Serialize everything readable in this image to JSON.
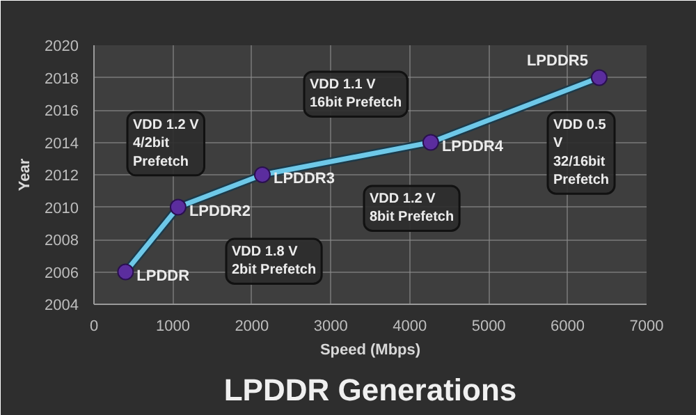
{
  "chart_data": {
    "type": "line",
    "title": "LPDDR Generations",
    "xlabel": "Speed (Mbps)",
    "ylabel": "Year",
    "x": [
      400,
      1066,
      2133,
      4266,
      6400
    ],
    "series": [
      {
        "color": "#6ec8e8",
        "values": [
          2006,
          2010,
          2012,
          2014,
          2018
        ]
      }
    ],
    "marker": "circle",
    "grid": true,
    "xlim": [
      0,
      7000
    ],
    "xticks": [
      0,
      1000,
      2000,
      3000,
      4000,
      5000,
      6000,
      7000
    ],
    "ylim": [
      2004,
      2020
    ],
    "yticks": [
      2004,
      2006,
      2008,
      2010,
      2012,
      2014,
      2016,
      2018,
      2020
    ],
    "annotations": [
      {
        "text": "LPDDR",
        "x": 400,
        "y": 2006
      },
      {
        "text": "LPDDR2",
        "x": 1066,
        "y": 2010
      },
      {
        "text": "LPDDR3",
        "x": 2133,
        "y": 2012
      },
      {
        "text": "LPDDR4",
        "x": 4266,
        "y": 2014
      },
      {
        "text": "LPDDR5",
        "x": 6400,
        "y": 2018
      },
      "VDD 1.8 V\n2bit Prefetch",
      "VDD 1.2 V\n4/2bit\nPrefetch",
      "VDD 1.2 V\n8bit Prefetch",
      "VDD 1.1 V\n16bit Prefetch",
      "VDD 0.5\nV\n32/16bit\nPrefetch"
    ]
  }
}
